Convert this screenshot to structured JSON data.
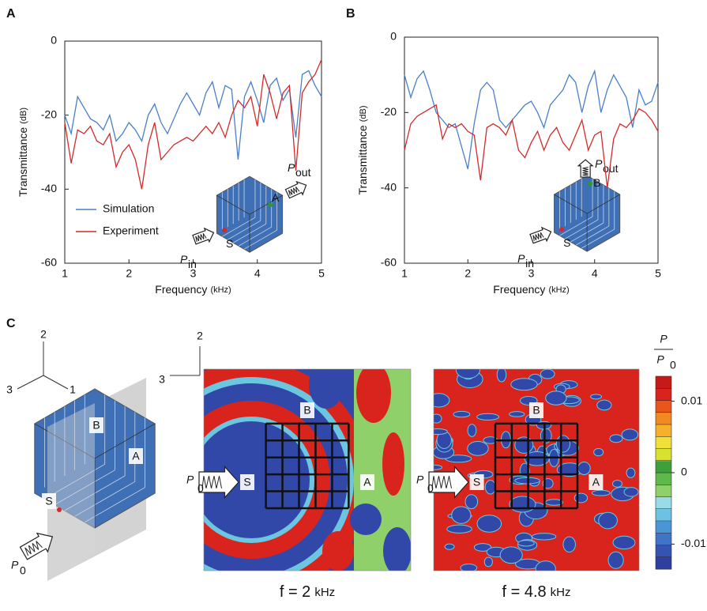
{
  "chart_data": [
    {
      "type": "line",
      "panel_label": "A",
      "x_label": "Frequency",
      "x_unit": "(kHz)",
      "y_label": "Transmittance",
      "y_unit": "(dB)",
      "x": [
        1.0,
        1.1,
        1.2,
        1.3,
        1.4,
        1.5,
        1.6,
        1.7,
        1.8,
        1.9,
        2.0,
        2.1,
        2.2,
        2.3,
        2.4,
        2.5,
        2.6,
        2.7,
        2.8,
        2.9,
        3.0,
        3.1,
        3.2,
        3.3,
        3.4,
        3.5,
        3.6,
        3.7,
        3.8,
        3.9,
        4.0,
        4.1,
        4.2,
        4.3,
        4.4,
        4.5,
        4.6,
        4.7,
        4.8,
        4.9,
        5.0
      ],
      "series": [
        {
          "name": "Simulation",
          "color": "#4a7fc9",
          "values": [
            -20,
            -25,
            -15,
            -18,
            -21,
            -22,
            -24,
            -20,
            -27,
            -25,
            -22,
            -24,
            -27,
            -20,
            -17,
            -22,
            -25,
            -21,
            -17,
            -14,
            -17,
            -20,
            -14,
            -11,
            -18,
            -12,
            -13,
            -32,
            -15,
            -11,
            -16,
            -22,
            -12,
            -10,
            -16,
            -13,
            -26,
            -9,
            -8,
            -12,
            -15
          ]
        },
        {
          "name": "Experiment",
          "color": "#d42a2a",
          "values": [
            -22,
            -33,
            -24,
            -25,
            -23,
            -27,
            -28,
            -25,
            -34,
            -30,
            -28,
            -32,
            -40,
            -28,
            -22,
            -32,
            -30,
            -28,
            -27,
            -26,
            -27,
            -25,
            -23,
            -25,
            -22,
            -26,
            -20,
            -16,
            -18,
            -15,
            -23,
            -9,
            -14,
            -21,
            -14,
            -12,
            -35,
            -14,
            -11,
            -9,
            -5
          ]
        }
      ],
      "xlim": [
        1,
        5
      ],
      "xticks": [
        1,
        2,
        3,
        4,
        5
      ],
      "ylim": [
        -60,
        0
      ],
      "yticks": [
        -60,
        -40,
        -20,
        0
      ],
      "legend": "lower left",
      "annotations": {
        "receiver": "A",
        "source": "S",
        "p_in": "P",
        "p_in_sub": "in",
        "p_out": "P",
        "p_out_sub": "out"
      }
    },
    {
      "type": "line",
      "panel_label": "B",
      "x_label": "Frequency",
      "x_unit": "(kHz)",
      "y_label": "Transmittance",
      "y_unit": "(dB)",
      "x": [
        1.0,
        1.1,
        1.2,
        1.3,
        1.4,
        1.5,
        1.6,
        1.7,
        1.8,
        1.9,
        2.0,
        2.1,
        2.2,
        2.3,
        2.4,
        2.5,
        2.6,
        2.7,
        2.8,
        2.9,
        3.0,
        3.1,
        3.2,
        3.3,
        3.4,
        3.5,
        3.6,
        3.7,
        3.8,
        3.9,
        4.0,
        4.1,
        4.2,
        4.3,
        4.4,
        4.5,
        4.6,
        4.7,
        4.8,
        4.9,
        5.0
      ],
      "series": [
        {
          "color": "#4a7fc9",
          "values": [
            -10,
            -16,
            -11,
            -9,
            -14,
            -20,
            -22,
            -24,
            -23,
            -29,
            -35,
            -23,
            -14,
            -12,
            -14,
            -22,
            -24,
            -22,
            -20,
            -18,
            -17,
            -20,
            -24,
            -18,
            -16,
            -14,
            -10,
            -12,
            -20,
            -13,
            -9,
            -20,
            -14,
            -10,
            -13,
            -16,
            -24,
            -14,
            -18,
            -17,
            -12
          ]
        },
        {
          "color": "#d42a2a",
          "values": [
            -30,
            -23,
            -21,
            -20,
            -19,
            -18,
            -27,
            -23,
            -24,
            -23,
            -25,
            -26,
            -38,
            -24,
            -23,
            -24,
            -26,
            -22,
            -30,
            -32,
            -28,
            -25,
            -30,
            -26,
            -24,
            -28,
            -30,
            -26,
            -22,
            -30,
            -26,
            -25,
            -40,
            -27,
            -23,
            -24,
            -22,
            -19,
            -20,
            -22,
            -25
          ]
        }
      ],
      "xlim": [
        1,
        5
      ],
      "xticks": [
        1,
        2,
        3,
        4,
        5
      ],
      "ylim": [
        -60,
        0
      ],
      "yticks": [
        -60,
        -40,
        -20,
        0
      ],
      "annotations": {
        "receiver": "B",
        "source": "S",
        "p_in": "P",
        "p_in_sub": "in",
        "p_out": "P",
        "p_out_sub": "out"
      }
    }
  ],
  "panel_c": {
    "label": "C",
    "axes_left": [
      "2",
      "3",
      "1"
    ],
    "axes_right": [
      "2",
      "3"
    ],
    "cube_labels": [
      "B",
      "A",
      "S"
    ],
    "source": {
      "symbol": "P",
      "sub": "0"
    },
    "maps": [
      {
        "labels": [
          "B",
          "A",
          "S"
        ],
        "caption": "f = 2",
        "unit": "kHz"
      },
      {
        "labels": [
          "B",
          "A",
          "S"
        ],
        "caption": "f = 4.8",
        "unit": "kHz"
      }
    ],
    "colorbar": {
      "num": "P",
      "den": "P",
      "den_sub": "0",
      "lim": [
        -0.0135,
        0.0135
      ],
      "ticks": [
        0.01,
        0,
        -0.01
      ]
    }
  }
}
